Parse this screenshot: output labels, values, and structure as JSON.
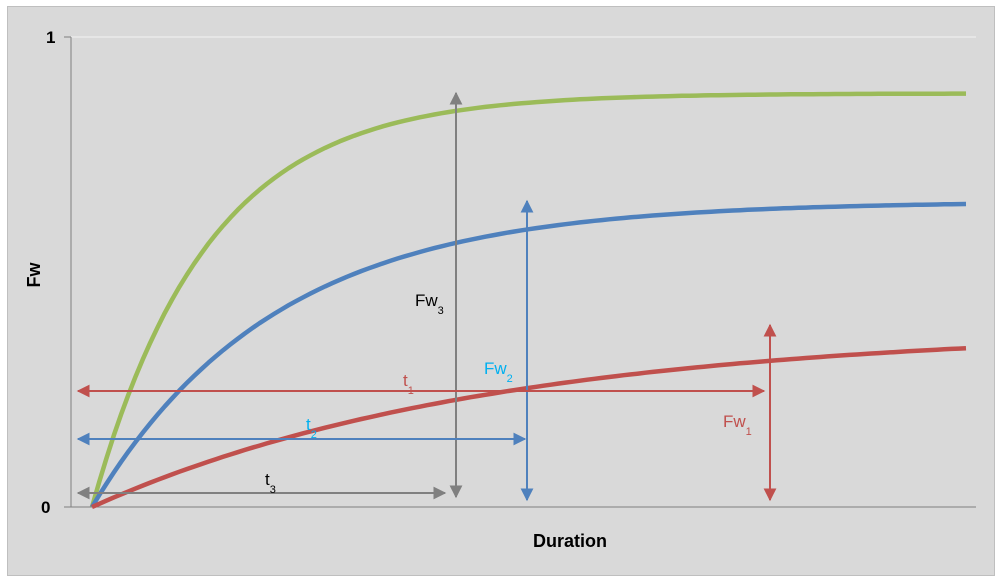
{
  "chart_data": {
    "type": "line",
    "title": "",
    "xlabel": "Duration",
    "ylabel": "Fw",
    "ylim": [
      0,
      1
    ],
    "y_ticks": [
      "0",
      "1"
    ],
    "grid": true,
    "legend": "none",
    "series": [
      {
        "color": "#9bbb59",
        "asymptote": 0.88,
        "rate": 0.19
      },
      {
        "color": "#4f81bd",
        "asymptote": 0.65,
        "rate": 0.12
      },
      {
        "color": "#c0504d",
        "asymptote": 0.38,
        "rate": 0.055
      }
    ],
    "annotations": [
      {
        "base": "Fw",
        "sub": "3",
        "color": "#000000"
      },
      {
        "base": "Fw",
        "sub": "2",
        "color": "#00b0f0"
      },
      {
        "base": "Fw",
        "sub": "1",
        "color": "#c0504d"
      },
      {
        "base": "t",
        "sub": "1",
        "color": "#c0504d"
      },
      {
        "base": "t",
        "sub": "2",
        "color": "#00b0f0"
      },
      {
        "base": "t",
        "sub": "3",
        "color": "#000000"
      }
    ],
    "arrow_colors": {
      "gray": "#808080",
      "blue": "#4f81bd",
      "red": "#c0504d"
    }
  }
}
